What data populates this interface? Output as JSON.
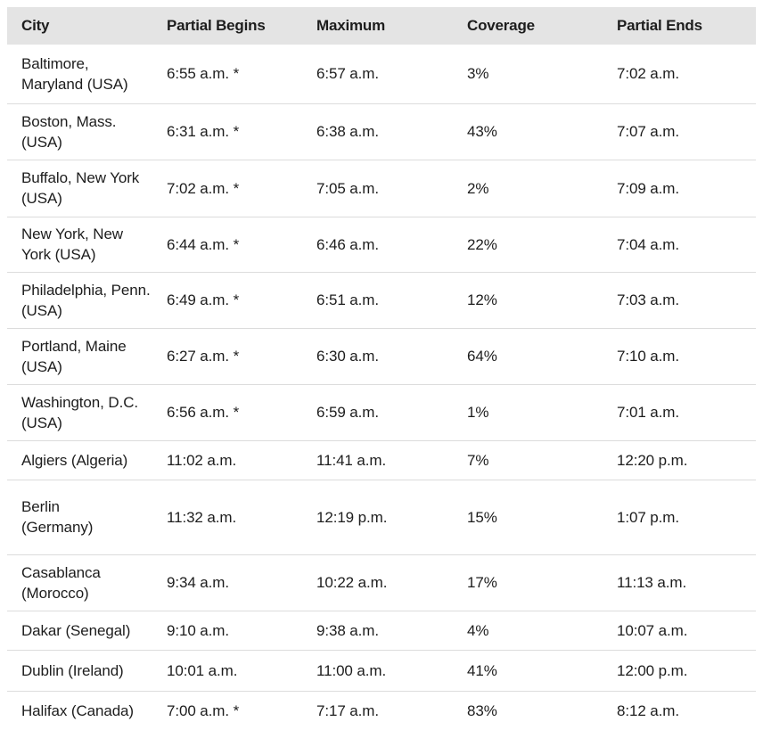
{
  "colors": {
    "header_bg": "#e4e4e4",
    "divider": "#dcdcdc",
    "text": "#1d1d1d",
    "background": "#ffffff"
  },
  "table": {
    "columns": [
      "City",
      "Partial Begins",
      "Maximum",
      "Coverage",
      "Partial Ends"
    ],
    "rows": [
      {
        "city": "Baltimore,\nMaryland (USA)",
        "partial_begins": "6:55 a.m. *",
        "maximum": "6:57 a.m.",
        "coverage": "3%",
        "partial_ends": "7:02 a.m."
      },
      {
        "city": "Boston, Mass.\n(USA)",
        "partial_begins": "6:31 a.m. *",
        "maximum": "6:38 a.m.",
        "coverage": "43%",
        "partial_ends": "7:07 a.m."
      },
      {
        "city": "Buffalo, New York\n(USA)",
        "partial_begins": "7:02 a.m. *",
        "maximum": "7:05 a.m.",
        "coverage": "2%",
        "partial_ends": "7:09 a.m."
      },
      {
        "city": "New York, New\nYork (USA)",
        "partial_begins": "6:44 a.m. *",
        "maximum": "6:46 a.m.",
        "coverage": "22%",
        "partial_ends": "7:04 a.m."
      },
      {
        "city": "Philadelphia, Penn.\n(USA)",
        "partial_begins": "6:49 a.m. *",
        "maximum": "6:51 a.m.",
        "coverage": "12%",
        "partial_ends": "7:03 a.m."
      },
      {
        "city": "Portland, Maine\n(USA)",
        "partial_begins": "6:27 a.m. *",
        "maximum": "6:30 a.m.",
        "coverage": "64%",
        "partial_ends": "7:10 a.m."
      },
      {
        "city": "Washington, D.C.\n(USA)",
        "partial_begins": "6:56 a.m. *",
        "maximum": "6:59 a.m.",
        "coverage": "1%",
        "partial_ends": "7:01 a.m."
      },
      {
        "city": "Algiers (Algeria)",
        "partial_begins": "11:02 a.m.",
        "maximum": "11:41 a.m.",
        "coverage": "7%",
        "partial_ends": "12:20 p.m."
      },
      {
        "city": "Berlin\n(Germany)",
        "partial_begins": "11:32 a.m.",
        "maximum": "12:19 p.m.",
        "coverage": "15%",
        "partial_ends": "1:07 p.m."
      },
      {
        "city": "Casablanca\n(Morocco)",
        "partial_begins": "9:34 a.m.",
        "maximum": "10:22 a.m.",
        "coverage": "17%",
        "partial_ends": "11:13 a.m."
      },
      {
        "city": "Dakar (Senegal)",
        "partial_begins": "9:10 a.m.",
        "maximum": "9:38 a.m.",
        "coverage": "4%",
        "partial_ends": "10:07 a.m."
      },
      {
        "city": "Dublin (Ireland)",
        "partial_begins": "10:01 a.m.",
        "maximum": "11:00 a.m.",
        "coverage": "41%",
        "partial_ends": "12:00 p.m."
      },
      {
        "city": "Halifax (Canada)",
        "partial_begins": "7:00 a.m. *",
        "maximum": "7:17 a.m.",
        "coverage": "83%",
        "partial_ends": "8:12 a.m."
      }
    ]
  }
}
